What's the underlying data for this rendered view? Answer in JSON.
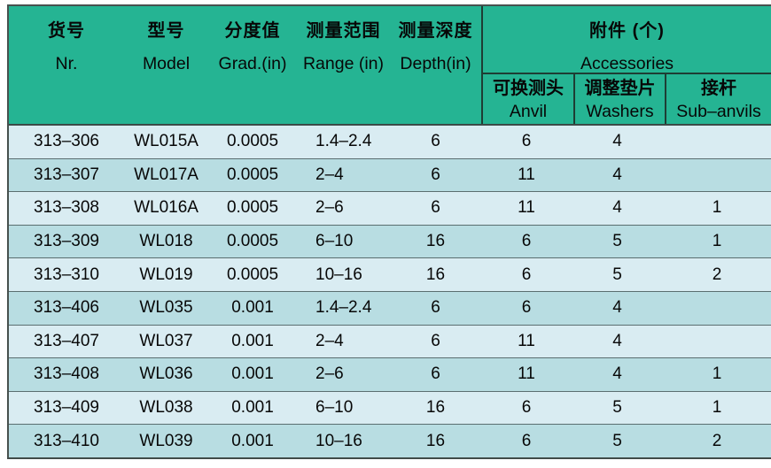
{
  "colors": {
    "header_bg": "#25b493",
    "row_light": "#d9ecf2",
    "row_dark": "#b8dde2",
    "outer_border": "#47514e",
    "header_divider": "#1e3d34",
    "row_separator": "#5a6e70",
    "text": "#070707"
  },
  "header": {
    "columns": [
      {
        "zh": "货号",
        "en": "Nr."
      },
      {
        "zh": "型号",
        "en": "Model"
      },
      {
        "zh": "分度值",
        "en": "Grad.(in)"
      },
      {
        "zh": "测量范围",
        "en": "Range (in)"
      },
      {
        "zh": "测量深度",
        "en": "Depth(in)"
      }
    ],
    "accessories_group": {
      "zh": "附件 (个)",
      "en": "Accessories",
      "subcolumns": [
        {
          "zh": "可换测头",
          "en": "Anvil"
        },
        {
          "zh": "调整垫片",
          "en": "Washers"
        },
        {
          "zh": "接杆",
          "en": "Sub–anvils"
        }
      ]
    }
  },
  "table": {
    "rows": [
      [
        "313–306",
        "WL015A",
        "0.0005",
        "1.4–2.4",
        "6",
        "6",
        "4",
        ""
      ],
      [
        "313–307",
        "WL017A",
        "0.0005",
        "2–4",
        "6",
        "11",
        "4",
        ""
      ],
      [
        "313–308",
        "WL016A",
        "0.0005",
        "2–6",
        "6",
        "11",
        "4",
        "1"
      ],
      [
        "313–309",
        "WL018",
        "0.0005",
        "6–10",
        "16",
        "6",
        "5",
        "1"
      ],
      [
        "313–310",
        "WL019",
        "0.0005",
        "10–16",
        "16",
        "6",
        "5",
        "2"
      ],
      [
        "313–406",
        "WL035",
        "0.001",
        "1.4–2.4",
        "6",
        "6",
        "4",
        ""
      ],
      [
        "313–407",
        "WL037",
        "0.001",
        "2–4",
        "6",
        "11",
        "4",
        ""
      ],
      [
        "313–408",
        "WL036",
        "0.001",
        "2–6",
        "6",
        "11",
        "4",
        "1"
      ],
      [
        "313–409",
        "WL038",
        "0.001",
        "6–10",
        "16",
        "6",
        "5",
        "1"
      ],
      [
        "313–410",
        "WL039",
        "0.001",
        "10–16",
        "16",
        "6",
        "5",
        "2"
      ]
    ]
  }
}
